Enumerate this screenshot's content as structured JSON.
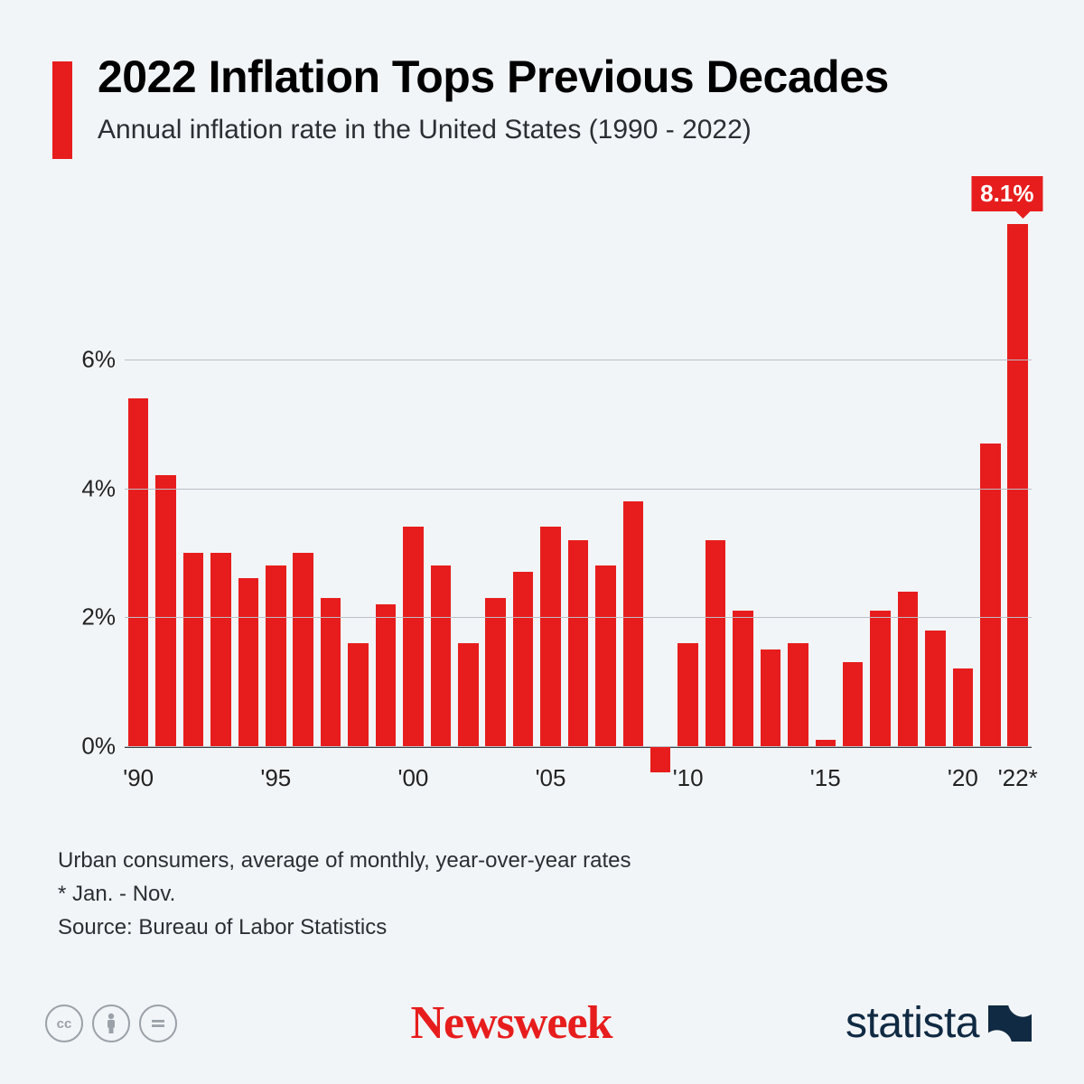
{
  "colors": {
    "background": "#f2f5f8",
    "accent": "#e71d1d",
    "axis": "#3a3f44",
    "grid": "#b9bfc5",
    "text": "#2b2f33"
  },
  "header": {
    "title": "2022 Inflation Tops Previous Decades",
    "subtitle": "Annual inflation rate in the United States (1990 - 2022)"
  },
  "chart": {
    "type": "bar",
    "y": {
      "min": -0.5,
      "max": 8.1,
      "ticks": [
        0,
        2,
        4,
        6
      ],
      "tick_labels": [
        "0%",
        "2%",
        "4%",
        "6%"
      ]
    },
    "bars": [
      {
        "year": 1990,
        "value": 5.4,
        "xlabel": "'90"
      },
      {
        "year": 1991,
        "value": 4.2
      },
      {
        "year": 1992,
        "value": 3.0
      },
      {
        "year": 1993,
        "value": 3.0
      },
      {
        "year": 1994,
        "value": 2.6
      },
      {
        "year": 1995,
        "value": 2.8,
        "xlabel": "'95"
      },
      {
        "year": 1996,
        "value": 3.0
      },
      {
        "year": 1997,
        "value": 2.3
      },
      {
        "year": 1998,
        "value": 1.6
      },
      {
        "year": 1999,
        "value": 2.2
      },
      {
        "year": 2000,
        "value": 3.4,
        "xlabel": "'00"
      },
      {
        "year": 2001,
        "value": 2.8
      },
      {
        "year": 2002,
        "value": 1.6
      },
      {
        "year": 2003,
        "value": 2.3
      },
      {
        "year": 2004,
        "value": 2.7
      },
      {
        "year": 2005,
        "value": 3.4,
        "xlabel": "'05"
      },
      {
        "year": 2006,
        "value": 3.2
      },
      {
        "year": 2007,
        "value": 2.8
      },
      {
        "year": 2008,
        "value": 3.8
      },
      {
        "year": 2009,
        "value": -0.4
      },
      {
        "year": 2010,
        "value": 1.6,
        "xlabel": "'10"
      },
      {
        "year": 2011,
        "value": 3.2
      },
      {
        "year": 2012,
        "value": 2.1
      },
      {
        "year": 2013,
        "value": 1.5
      },
      {
        "year": 2014,
        "value": 1.6
      },
      {
        "year": 2015,
        "value": 0.1,
        "xlabel": "'15"
      },
      {
        "year": 2016,
        "value": 1.3
      },
      {
        "year": 2017,
        "value": 2.1
      },
      {
        "year": 2018,
        "value": 2.4
      },
      {
        "year": 2019,
        "value": 1.8
      },
      {
        "year": 2020,
        "value": 1.2,
        "xlabel": "'20"
      },
      {
        "year": 2021,
        "value": 4.7
      },
      {
        "year": 2022,
        "value": 8.1,
        "xlabel": "'22*",
        "callout": "8.1%"
      }
    ],
    "bar_width_ratio": 0.74
  },
  "notes": {
    "line1": "Urban consumers, average of monthly, year-over-year rates",
    "line2": "* Jan. - Nov.",
    "line3": "Source: Bureau of Labor Statistics"
  },
  "footer": {
    "newsweek": "Newsweek",
    "statista": "statista"
  }
}
